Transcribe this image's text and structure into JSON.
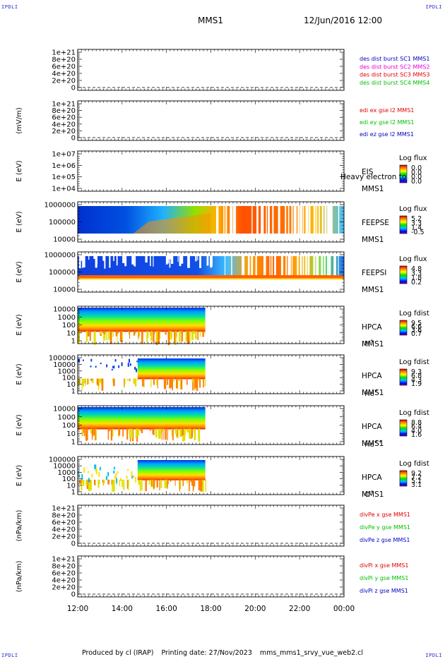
{
  "header": {
    "corner_tl": "IPDLI",
    "corner_tr": "IPDLI",
    "corner_bl": "IPDLI",
    "corner_br": "IPDLI",
    "spacecraft": "MMS1",
    "datetime": "12/Jun/2016 12:00"
  },
  "footer": {
    "produced_by": "Produced by cl (IRAP)",
    "printing_date": "Printing date: 27/Nov/2023",
    "script": "mms_mms1_srvy_vue_web2.cl"
  },
  "colors": {
    "red": "#e00000",
    "magenta": "#e000e0",
    "green": "#00c000",
    "blue": "#0000c0",
    "dashed": "#000000"
  },
  "chart_data": [
    {
      "type": "line",
      "id": "des-dist",
      "ylabel": "",
      "yticks": [
        "1e+21",
        "8e+20",
        "6e+20",
        "4e+20",
        "2e+20",
        "0"
      ],
      "ylim": [
        0,
        1e+21
      ],
      "legend": [
        {
          "name": "des dist burst SC1 MMS1",
          "color": "#0000c0"
        },
        {
          "name": "des dist burst SC2 MMS2",
          "color": "#e000e0"
        },
        {
          "name": "des dist burst SC3 MMS3",
          "color": "#e00000"
        },
        {
          "name": "des dist burst SC4 MMS4",
          "color": "#00c000"
        }
      ],
      "series": []
    },
    {
      "type": "line",
      "id": "edi-e",
      "ylabel": "(mV/m)",
      "yticks": [
        "1e+21",
        "8e+20",
        "6e+20",
        "4e+20",
        "2e+20",
        "0"
      ],
      "ylim": [
        0,
        1e+21
      ],
      "legend": [
        {
          "name": "edi ex gse l2 MMS1",
          "color": "#e00000"
        },
        {
          "name": "edi ey gse l2 MMS1",
          "color": "#00c000"
        },
        {
          "name": "edi ez gse l2 MMS1",
          "color": "#0000c0"
        }
      ],
      "series": []
    },
    {
      "type": "heatmap",
      "id": "eis",
      "ylabel": "E (eV)",
      "yticks": [
        "1e+07",
        "1e+06",
        "1e+05",
        "1e+04"
      ],
      "label_lines": [
        "EIS",
        "MMS1"
      ],
      "overlay_label": "Heavy electron to",
      "colorbar_title": "Log flux",
      "colorbar_ticks": [
        "0.0",
        "0.0",
        "0.0",
        "0.0"
      ],
      "coverage_end_hours": 0
    },
    {
      "type": "heatmap",
      "id": "feeps-e",
      "ylabel": "E (eV)",
      "yticks": [
        "1000000",
        "100000",
        "10000"
      ],
      "label_lines": [
        "FEEPSE",
        "MMS1"
      ],
      "colorbar_title": "Log flux",
      "colorbar_ticks": [
        "5.2",
        "3.3",
        "1.4",
        "-0.5"
      ],
      "coverage_end_hours": 12
    },
    {
      "type": "heatmap",
      "id": "feeps-i",
      "ylabel": "E (eV)",
      "yticks": [
        "1000000",
        "100000",
        "10000"
      ],
      "label_lines": [
        "FEEPSI",
        "MMS1"
      ],
      "colorbar_title": "Log flux",
      "colorbar_ticks": [
        "4.8",
        "3.3",
        "1.8",
        "0.2"
      ],
      "coverage_end_hours": 12
    },
    {
      "type": "heatmap",
      "id": "hpca-h",
      "ylabel": "E (eV)",
      "yticks": [
        "10000",
        "1000",
        "100",
        "10",
        "1"
      ],
      "label_lines": [
        "HPCA",
        "MMS1"
      ],
      "species": "H",
      "species_sup": "+",
      "colorbar_title": "Log fdist",
      "colorbar_ticks": [
        "9.5",
        "6.6",
        "3.6",
        "0.7"
      ],
      "coverage_end_hours": 5.75
    },
    {
      "type": "heatmap",
      "id": "hpca-he",
      "ylabel": "E (eV)",
      "yticks": [
        "100000",
        "10000",
        "1000",
        "100",
        "10",
        "1"
      ],
      "label_lines": [
        "HPCA",
        "MMS1"
      ],
      "species": "He",
      "species_sup": "+",
      "colorbar_title": "Log fdist",
      "colorbar_ticks": [
        "9.3",
        "6.8",
        "4.3",
        "1.9"
      ],
      "coverage_end_hours": 5.75
    },
    {
      "type": "heatmap",
      "id": "hpca-he2",
      "ylabel": "E (eV)",
      "yticks": [
        "10000",
        "1000",
        "100",
        "10",
        "1"
      ],
      "label_lines": [
        "HPCA",
        "MMS1"
      ],
      "species": "He",
      "species_sup": "++",
      "colorbar_title": "Log fdist",
      "colorbar_ticks": [
        "8.8",
        "6.4",
        "4.0",
        "1.6"
      ],
      "coverage_end_hours": 5.75
    },
    {
      "type": "heatmap",
      "id": "hpca-o",
      "ylabel": "E (eV)",
      "yticks": [
        "100000",
        "10000",
        "1000",
        "100",
        "10",
        "1"
      ],
      "label_lines": [
        "HPCA",
        "MMS1"
      ],
      "species": "O",
      "species_sup": "+",
      "colorbar_title": "Log fdist",
      "colorbar_ticks": [
        "9.2",
        "7.2",
        "5.1",
        "3.1"
      ],
      "coverage_end_hours": 5.75
    },
    {
      "type": "line",
      "id": "divpe",
      "ylabel": "(nPa/km)",
      "yticks": [
        "1e+21",
        "8e+20",
        "6e+20",
        "4e+20",
        "2e+20",
        "0"
      ],
      "ylim": [
        0,
        1e+21
      ],
      "legend": [
        {
          "name": "divPe x gse MMS1",
          "color": "#e00000"
        },
        {
          "name": "divPe y gse MMS1",
          "color": "#00c000"
        },
        {
          "name": "divPe z gse MMS1",
          "color": "#0000c0"
        }
      ],
      "series": []
    },
    {
      "type": "line",
      "id": "divpi",
      "ylabel": "(nPa/km)",
      "yticks": [
        "1e+21",
        "8e+20",
        "6e+20",
        "4e+20",
        "2e+20",
        "0"
      ],
      "ylim": [
        0,
        1e+21
      ],
      "legend": [
        {
          "name": "divPi x gse MMS1",
          "color": "#e00000"
        },
        {
          "name": "divPi y gse MMS1",
          "color": "#00c000"
        },
        {
          "name": "divPi z gse MMS1",
          "color": "#0000c0"
        }
      ],
      "series": []
    }
  ],
  "xaxis": {
    "ticks": [
      "12:00",
      "14:00",
      "16:00",
      "18:00",
      "20:00",
      "22:00",
      "00:00"
    ]
  }
}
